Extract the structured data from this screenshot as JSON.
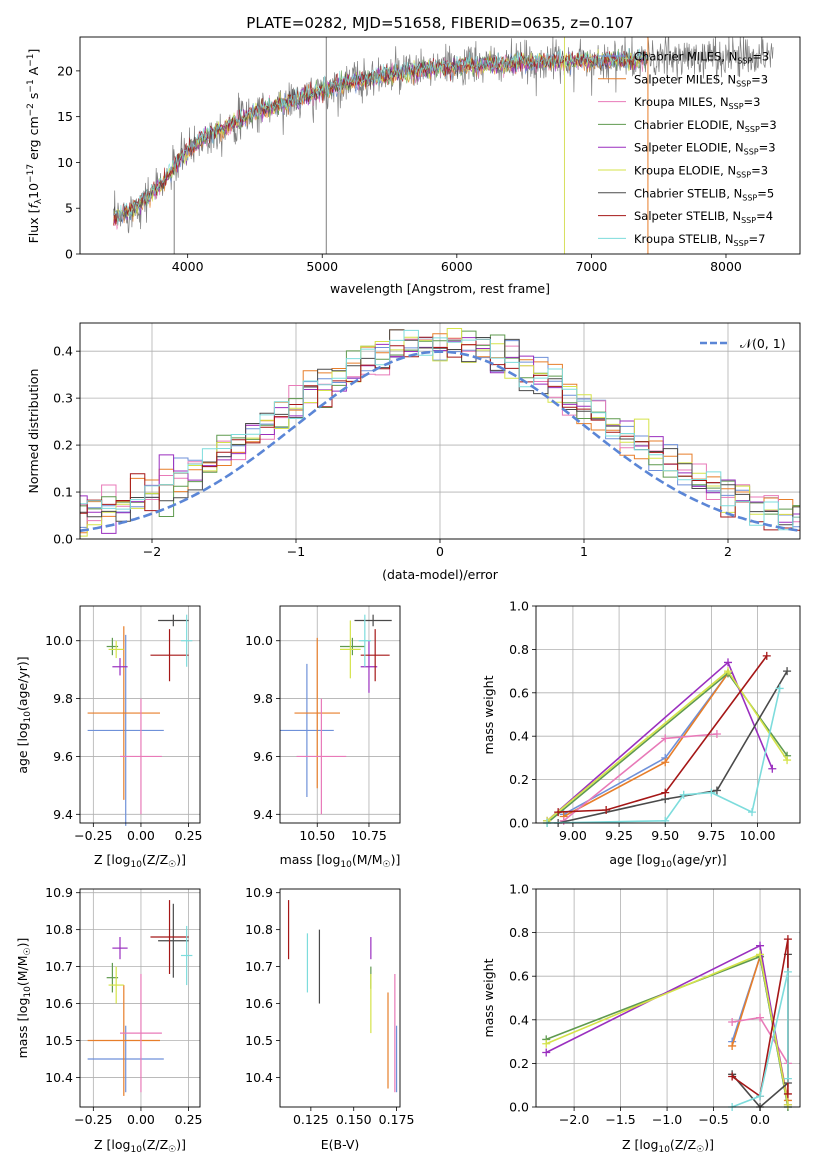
{
  "figure_title": "PLATE=0282, MJD=51658, FIBERID=0635, z=0.107",
  "colors": {
    "Chabrier MILES": "#6f91d9",
    "Salpeter MILES": "#e77e2a",
    "Kroupa MILES": "#e87ab8",
    "Chabrier ELODIE": "#5f9a4f",
    "Salpeter ELODIE": "#9a2fbf",
    "Kroupa ELODIE": "#d5e34a",
    "Chabrier STELIB": "#4a4a4a",
    "Salpeter STELIB": "#a51717",
    "Kroupa STELIB": "#7ddcdc",
    "data": "#7f7f7f",
    "normal": "#5b86d6"
  },
  "chart_data": [
    {
      "id": "spectrum",
      "type": "line",
      "title": "PLATE=0282, MJD=51658, FIBERID=0635, z=0.107",
      "xlabel": "wavelength [Angstrom, rest frame]",
      "ylabel": "Flux [f_λ10^-17 erg cm^-2 s^-1 A^-1]",
      "xlim": [
        3200,
        8550
      ],
      "ylim": [
        0,
        23.7
      ],
      "xticks": [
        4000,
        5000,
        6000,
        7000,
        8000
      ],
      "yticks": [
        0,
        5,
        10,
        15,
        20
      ],
      "grid": false,
      "legend_position": "right",
      "continuum": {
        "x": [
          3420,
          3600,
          3800,
          3950,
          4100,
          4300,
          4500,
          4800,
          5000,
          5200,
          5500,
          5800,
          6100,
          6400,
          6700,
          7000,
          7300,
          7500,
          7800,
          8100,
          8300
        ],
        "y": [
          3.5,
          5.0,
          7.5,
          10.5,
          12.5,
          14.0,
          15.5,
          16.8,
          17.8,
          18.8,
          19.6,
          20.2,
          20.6,
          20.8,
          21.0,
          21.1,
          21.2,
          21.3,
          21.5,
          21.6,
          21.8
        ]
      },
      "data_range": [
        3450,
        8350
      ],
      "model_range": [
        3450,
        7420
      ],
      "spikes": [
        {
          "x": 5030,
          "y0": 0,
          "y1": 23.7
        },
        {
          "x": 6800,
          "y0": 0,
          "y1": 23.7
        },
        {
          "x": 7420,
          "y0": 0,
          "y1": 23.7
        },
        {
          "x": 3900,
          "y0": 0,
          "y1": 8.0
        }
      ],
      "series": [
        {
          "name": "Chabrier MILES, N_SSP=3",
          "label": "Chabrier MILES, N",
          "sub": "SSP",
          "suffix": "=3",
          "color": "#6f91d9"
        },
        {
          "name": "Salpeter MILES, N_SSP=3",
          "label": "Salpeter MILES, N",
          "sub": "SSP",
          "suffix": "=3",
          "color": "#e77e2a"
        },
        {
          "name": "Kroupa MILES, N_SSP=3",
          "label": "Kroupa MILES, N",
          "sub": "SSP",
          "suffix": "=3",
          "color": "#e87ab8"
        },
        {
          "name": "Chabrier ELODIE, N_SSP=3",
          "label": "Chabrier ELODIE, N",
          "sub": "SSP",
          "suffix": "=3",
          "color": "#5f9a4f"
        },
        {
          "name": "Salpeter ELODIE, N_SSP=3",
          "label": "Salpeter ELODIE, N",
          "sub": "SSP",
          "suffix": "=3",
          "color": "#9a2fbf"
        },
        {
          "name": "Kroupa ELODIE, N_SSP=3",
          "label": "Kroupa ELODIE, N",
          "sub": "SSP",
          "suffix": "=3",
          "color": "#d5e34a"
        },
        {
          "name": "Chabrier STELIB, N_SSP=5",
          "label": "Chabrier STELIB, N",
          "sub": "SSP",
          "suffix": "=5",
          "color": "#4a4a4a"
        },
        {
          "name": "Salpeter STELIB, N_SSP=4",
          "label": "Salpeter STELIB, N",
          "sub": "SSP",
          "suffix": "=4",
          "color": "#a51717"
        },
        {
          "name": "Kroupa STELIB, N_SSP=7",
          "label": "Kroupa STELIB, N",
          "sub": "SSP",
          "suffix": "=7",
          "color": "#7ddcdc"
        }
      ]
    },
    {
      "id": "residuals",
      "type": "histogram",
      "xlabel": "(data-model)/error",
      "ylabel": "Normed distribution",
      "xlim": [
        -2.5,
        2.5
      ],
      "ylim": [
        0,
        0.46
      ],
      "xticks": [
        -2,
        -1,
        0,
        1,
        2
      ],
      "yticks": [
        0.0,
        0.1,
        0.2,
        0.3,
        0.4
      ],
      "grid": true,
      "bin_width": 0.1,
      "legend_position": "top-right",
      "legend": "𝒩(0, 1)",
      "normal_curve": {
        "mean": 0,
        "sigma": 1
      }
    },
    {
      "id": "age_vs_Z",
      "type": "errorbar",
      "xlabel": "Z [log10(Z/Z☉)]",
      "ylabel": "age [log10(age/yr)]",
      "xlim": [
        -0.32,
        0.31
      ],
      "ylim": [
        9.37,
        10.12
      ],
      "xticks": [
        -0.25,
        0.0,
        0.25
      ],
      "yticks": [
        9.4,
        9.6,
        9.8,
        10.0
      ],
      "grid": true,
      "points": [
        {
          "series": "Chabrier MILES",
          "x": -0.08,
          "xerr": 0.2,
          "y": 9.69,
          "yerr": 0.33
        },
        {
          "series": "Salpeter MILES",
          "x": -0.09,
          "xerr": 0.19,
          "y": 9.75,
          "yerr": 0.3
        },
        {
          "series": "Kroupa MILES",
          "x": 0.0,
          "xerr": 0.11,
          "y": 9.6,
          "yerr": 0.2
        },
        {
          "series": "Chabrier ELODIE",
          "x": -0.15,
          "xerr": 0.03,
          "y": 9.98,
          "yerr": 0.03
        },
        {
          "series": "Salpeter ELODIE",
          "x": -0.11,
          "xerr": 0.04,
          "y": 9.91,
          "yerr": 0.03
        },
        {
          "series": "Kroupa ELODIE",
          "x": -0.13,
          "xerr": 0.04,
          "y": 9.97,
          "yerr": 0.03
        },
        {
          "series": "Chabrier STELIB",
          "x": 0.17,
          "xerr": 0.08,
          "y": 10.07,
          "yerr": 0.02
        },
        {
          "series": "Salpeter STELIB",
          "x": 0.15,
          "xerr": 0.1,
          "y": 9.95,
          "yerr": 0.09
        },
        {
          "series": "Kroupa STELIB",
          "x": 0.24,
          "xerr": 0.03,
          "y": 10.0,
          "yerr": 0.09
        }
      ]
    },
    {
      "id": "age_vs_mass",
      "type": "errorbar",
      "xlabel": "mass [log10(M/M☉)]",
      "ylabel": "",
      "xlim": [
        10.32,
        10.9
      ],
      "ylim": [
        9.37,
        10.12
      ],
      "xticks": [
        10.5,
        10.75
      ],
      "yticks": [
        9.4,
        9.6,
        9.8,
        10.0
      ],
      "grid": true,
      "points": [
        {
          "series": "Chabrier MILES",
          "x": 10.45,
          "xerr": 0.13,
          "y": 9.69,
          "yerr": 0.23
        },
        {
          "series": "Salpeter MILES",
          "x": 10.5,
          "xerr": 0.11,
          "y": 9.75,
          "yerr": 0.26
        },
        {
          "series": "Kroupa MILES",
          "x": 10.52,
          "xerr": 0.12,
          "y": 9.6,
          "yerr": 0.2
        },
        {
          "series": "Chabrier ELODIE",
          "x": 10.67,
          "xerr": 0.06,
          "y": 9.98,
          "yerr": 0.03
        },
        {
          "series": "Salpeter ELODIE",
          "x": 10.75,
          "xerr": 0.04,
          "y": 9.91,
          "yerr": 0.09
        },
        {
          "series": "Kroupa ELODIE",
          "x": 10.66,
          "xerr": 0.05,
          "y": 9.97,
          "yerr": 0.1
        },
        {
          "series": "Chabrier STELIB",
          "x": 10.77,
          "xerr": 0.09,
          "y": 10.07,
          "yerr": 0.02
        },
        {
          "series": "Salpeter STELIB",
          "x": 10.78,
          "xerr": 0.07,
          "y": 9.95,
          "yerr": 0.09
        },
        {
          "series": "Kroupa STELIB",
          "x": 10.73,
          "xerr": 0.03,
          "y": 10.0,
          "yerr": 0.09
        }
      ]
    },
    {
      "id": "weight_vs_age",
      "type": "line",
      "xlabel": "age [log10(age/yr)]",
      "ylabel": "mass weight",
      "xlim": [
        8.8,
        10.23
      ],
      "ylim": [
        0,
        1.0
      ],
      "xticks": [
        9.0,
        9.25,
        9.5,
        9.75,
        10.0
      ],
      "yticks": [
        0.0,
        0.2,
        0.4,
        0.6,
        0.8,
        1.0
      ],
      "grid": true,
      "series": [
        {
          "name": "Chabrier MILES",
          "x": [
            8.95,
            9.5,
            9.84
          ],
          "y": [
            0.04,
            0.3,
            0.69
          ]
        },
        {
          "name": "Salpeter MILES",
          "x": [
            8.95,
            9.5,
            9.84
          ],
          "y": [
            0.03,
            0.28,
            0.69
          ]
        },
        {
          "name": "Kroupa MILES",
          "x": [
            8.95,
            9.5,
            9.78
          ],
          "y": [
            0.01,
            0.39,
            0.41
          ]
        },
        {
          "name": "Chabrier ELODIE",
          "x": [
            8.86,
            9.84,
            10.16
          ],
          "y": [
            0.0,
            0.69,
            0.31
          ]
        },
        {
          "name": "Salpeter ELODIE",
          "x": [
            8.86,
            9.84,
            10.08
          ],
          "y": [
            0.01,
            0.74,
            0.25
          ]
        },
        {
          "name": "Kroupa ELODIE",
          "x": [
            8.86,
            9.84,
            10.16
          ],
          "y": [
            0.01,
            0.7,
            0.29
          ]
        },
        {
          "name": "Chabrier STELIB",
          "x": [
            8.92,
            9.5,
            9.78,
            10.16
          ],
          "y": [
            0.0,
            0.11,
            0.15,
            0.7
          ]
        },
        {
          "name": "Salpeter STELIB",
          "x": [
            8.92,
            9.18,
            9.5,
            10.05
          ],
          "y": [
            0.05,
            0.06,
            0.14,
            0.77
          ]
        },
        {
          "name": "Kroupa STELIB",
          "x": [
            8.86,
            9.5,
            9.6,
            9.75,
            9.97,
            10.12
          ],
          "y": [
            0.0,
            0.01,
            0.13,
            0.14,
            0.05,
            0.62
          ]
        }
      ]
    },
    {
      "id": "mass_vs_Z",
      "type": "errorbar",
      "xlabel": "Z [log10(Z/Z☉)]",
      "ylabel": "mass [log10(M/M☉)]",
      "xlim": [
        -0.32,
        0.31
      ],
      "ylim": [
        10.32,
        10.91
      ],
      "xticks": [
        -0.25,
        0.0,
        0.25
      ],
      "yticks": [
        10.4,
        10.5,
        10.6,
        10.7,
        10.8,
        10.9
      ],
      "grid": true,
      "points": [
        {
          "series": "Chabrier MILES",
          "x": -0.08,
          "xerr": 0.2,
          "y": 10.45,
          "yerr": 0.09
        },
        {
          "series": "Salpeter MILES",
          "x": -0.09,
          "xerr": 0.19,
          "y": 10.5,
          "yerr": 0.15
        },
        {
          "series": "Kroupa MILES",
          "x": 0.0,
          "xerr": 0.11,
          "y": 10.52,
          "yerr": 0.16
        },
        {
          "series": "Chabrier ELODIE",
          "x": -0.15,
          "xerr": 0.03,
          "y": 10.67,
          "yerr": 0.04
        },
        {
          "series": "Salpeter ELODIE",
          "x": -0.11,
          "xerr": 0.04,
          "y": 10.75,
          "yerr": 0.03
        },
        {
          "series": "Kroupa ELODIE",
          "x": -0.13,
          "xerr": 0.04,
          "y": 10.65,
          "yerr": 0.05
        },
        {
          "series": "Chabrier STELIB",
          "x": 0.17,
          "xerr": 0.08,
          "y": 10.77,
          "yerr": 0.1
        },
        {
          "series": "Salpeter STELIB",
          "x": 0.15,
          "xerr": 0.1,
          "y": 10.78,
          "yerr": 0.1
        },
        {
          "series": "Kroupa STELIB",
          "x": 0.24,
          "xerr": 0.03,
          "y": 10.73,
          "yerr": 0.08
        }
      ]
    },
    {
      "id": "mass_vs_ebv",
      "type": "errorbar",
      "xlabel": "E(B-V)",
      "ylabel": "",
      "xlim": [
        0.107,
        0.177
      ],
      "ylim": [
        10.32,
        10.91
      ],
      "xticks": [
        0.125,
        0.15,
        0.175
      ],
      "yticks": [
        10.4,
        10.5,
        10.6,
        10.7,
        10.8,
        10.9
      ],
      "grid": false,
      "points": [
        {
          "series": "Chabrier MILES",
          "x": 0.175,
          "xerr": 0,
          "y": 10.45,
          "yerr": 0.09
        },
        {
          "series": "Salpeter MILES",
          "x": 0.17,
          "xerr": 0,
          "y": 10.5,
          "yerr": 0.13
        },
        {
          "series": "Kroupa MILES",
          "x": 0.174,
          "xerr": 0,
          "y": 10.52,
          "yerr": 0.16
        },
        {
          "series": "Chabrier ELODIE",
          "x": 0.16,
          "xerr": 0,
          "y": 10.67,
          "yerr": 0.03
        },
        {
          "series": "Salpeter ELODIE",
          "x": 0.16,
          "xerr": 0,
          "y": 10.75,
          "yerr": 0.03
        },
        {
          "series": "Kroupa ELODIE",
          "x": 0.16,
          "xerr": 0,
          "y": 10.6,
          "yerr": 0.08
        },
        {
          "series": "Chabrier STELIB",
          "x": 0.13,
          "xerr": 0,
          "y": 10.7,
          "yerr": 0.1
        },
        {
          "series": "Salpeter STELIB",
          "x": 0.112,
          "xerr": 0,
          "y": 10.8,
          "yerr": 0.08
        },
        {
          "series": "Kroupa STELIB",
          "x": 0.123,
          "xerr": 0,
          "y": 10.71,
          "yerr": 0.08
        }
      ]
    },
    {
      "id": "weight_vs_Z",
      "type": "line",
      "xlabel": "Z [log10(Z/Z☉)]",
      "ylabel": "mass weight",
      "xlim": [
        -2.41,
        0.43
      ],
      "ylim": [
        0,
        1.0
      ],
      "xticks": [
        -2.0,
        -1.5,
        -1.0,
        -0.5,
        0.0
      ],
      "yticks": [
        0.0,
        0.2,
        0.4,
        0.6,
        0.8,
        1.0
      ],
      "grid": true,
      "series": [
        {
          "name": "Chabrier MILES",
          "x": [
            -0.3,
            0.0,
            0.3
          ],
          "y": [
            0.3,
            0.69,
            0.0
          ]
        },
        {
          "name": "Salpeter MILES",
          "x": [
            -0.3,
            0.0,
            0.3
          ],
          "y": [
            0.28,
            0.69,
            0.03
          ]
        },
        {
          "name": "Kroupa MILES",
          "x": [
            -0.3,
            0.0,
            0.3
          ],
          "y": [
            0.39,
            0.41,
            0.2
          ]
        },
        {
          "name": "Chabrier ELODIE",
          "x": [
            -2.3,
            0.0,
            0.3
          ],
          "y": [
            0.31,
            0.69,
            0.0
          ]
        },
        {
          "name": "Salpeter ELODIE",
          "x": [
            -2.3,
            0.0,
            0.3
          ],
          "y": [
            0.25,
            0.74,
            0.01
          ]
        },
        {
          "name": "Kroupa ELODIE",
          "x": [
            -2.3,
            0.0,
            0.3
          ],
          "y": [
            0.29,
            0.7,
            0.01
          ]
        },
        {
          "name": "Chabrier STELIB",
          "x": [
            -0.3,
            0.0,
            0.3,
            0.3
          ],
          "y": [
            0.15,
            0.0,
            0.11,
            0.7
          ]
        },
        {
          "name": "Salpeter STELIB",
          "x": [
            -0.3,
            0.0,
            0.3,
            0.3
          ],
          "y": [
            0.14,
            0.05,
            0.77,
            0.06
          ]
        },
        {
          "name": "Kroupa STELIB",
          "x": [
            -0.3,
            0.0,
            0.3,
            0.3
          ],
          "y": [
            0.0,
            0.05,
            0.62,
            0.13
          ]
        }
      ]
    }
  ]
}
